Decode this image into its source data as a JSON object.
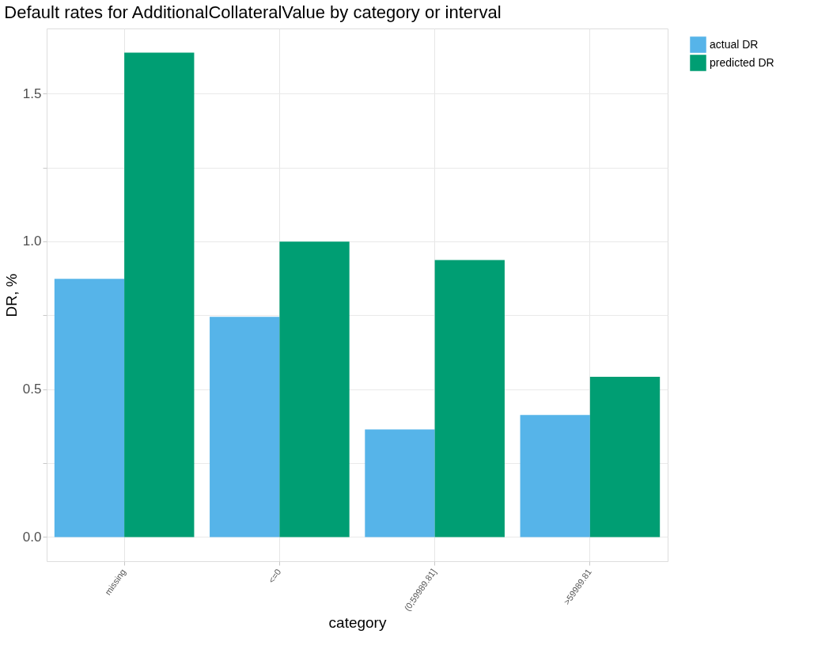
{
  "chart_data": {
    "type": "bar",
    "title": "Default rates for  AdditionalCollateralValue by category or interval",
    "xlabel": "category",
    "ylabel": "DR, %",
    "categories": [
      "missing",
      "<=0",
      "(0;59989.81]",
      ">59989.81"
    ],
    "series": [
      {
        "name": "actual DR",
        "color": "#56b4e9",
        "values": [
          0.873,
          0.745,
          0.364,
          0.413
        ]
      },
      {
        "name": "predicted DR",
        "color": "#009e73",
        "values": [
          1.638,
          0.999,
          0.937,
          0.542
        ]
      }
    ],
    "ylim": [
      -0.082,
      1.72
    ],
    "yticks": [
      {
        "value": 0,
        "label": "0.0"
      },
      {
        "value": 0.25,
        "label": null
      },
      {
        "value": 0.5,
        "label": "0.5"
      },
      {
        "value": 0.75,
        "label": null
      },
      {
        "value": 1,
        "label": "1.0"
      },
      {
        "value": 1.25,
        "label": null
      },
      {
        "value": 1.5,
        "label": "1.5"
      }
    ],
    "grid": true,
    "legend": "right"
  }
}
